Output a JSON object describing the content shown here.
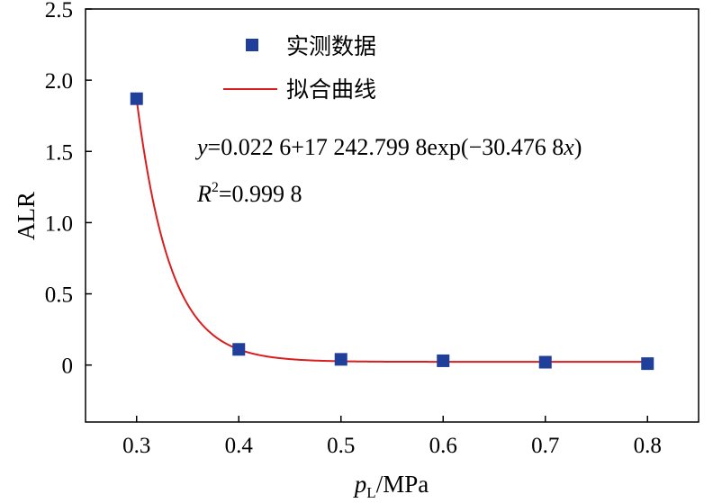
{
  "chart_data": {
    "type": "scatter",
    "xlabel_var": "p",
    "xlabel_sub": "L",
    "xlabel_unit": "/MPa",
    "ylabel": "ALR",
    "xlim": [
      0.25,
      0.85
    ],
    "ylim": [
      -0.4,
      2.5
    ],
    "x_ticks": [
      0.3,
      0.4,
      0.5,
      0.6,
      0.7,
      0.8
    ],
    "x_tick_labels": [
      "0.3",
      "0.4",
      "0.5",
      "0.6",
      "0.7",
      "0.8"
    ],
    "y_ticks": [
      0,
      0.5,
      1.0,
      1.5,
      2.0,
      2.5
    ],
    "y_tick_labels": [
      "0",
      "0.5",
      "1.0",
      "1.5",
      "2.0",
      "2.5"
    ],
    "series": [
      {
        "name": "实测数据",
        "kind": "markers",
        "marker": "square",
        "color": "#1f3f9a",
        "x": [
          0.3,
          0.4,
          0.5,
          0.6,
          0.7,
          0.8
        ],
        "y": [
          1.87,
          0.11,
          0.04,
          0.03,
          0.02,
          0.01
        ]
      },
      {
        "name": "拟合曲线",
        "kind": "line",
        "color": "#d81e1e",
        "model": {
          "a": 0.0226,
          "b": 17242.7998,
          "c": -30.4768
        },
        "x_range": [
          0.3,
          0.8
        ]
      }
    ],
    "legend": {
      "placement": "top-center",
      "items": [
        "实测数据",
        "拟合曲线"
      ]
    },
    "annotations": {
      "equation_var": "y",
      "equation_mid": "=0.022 6+17 242.799 8exp(−30.476 8",
      "equation_x": "x",
      "equation_end": ")",
      "r2_var": "R",
      "r2_sup": "2",
      "r2_value": "=0.999 8"
    }
  }
}
